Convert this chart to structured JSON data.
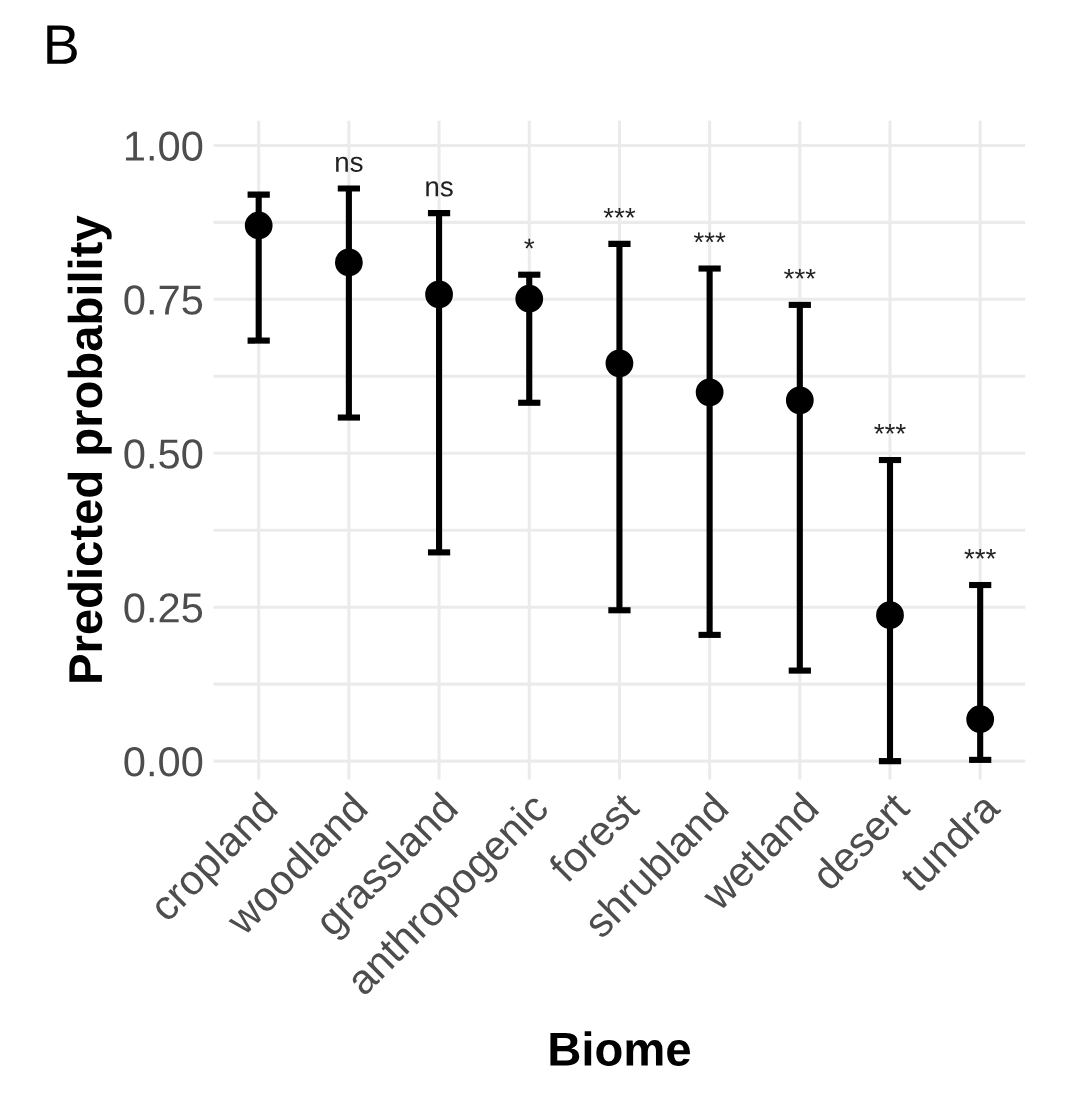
{
  "chart_data": {
    "type": "scatter",
    "title": "B",
    "xlabel": "Biome",
    "ylabel": "Predicted probability",
    "categories": [
      "cropland",
      "woodland",
      "grassland",
      "anthropogenic",
      "forest",
      "shrubland",
      "wetland",
      "desert",
      "tundra"
    ],
    "series": [
      {
        "color": "#000000",
        "values": [
          0.87,
          0.81,
          0.758,
          0.751,
          0.646,
          0.599,
          0.586,
          0.237,
          0.068
        ],
        "errors": [
          [
            0.683,
            0.92
          ],
          [
            0.558,
            0.93
          ],
          [
            0.339,
            0.89
          ],
          [
            0.582,
            0.79
          ],
          [
            0.245,
            0.84
          ],
          [
            0.205,
            0.8
          ],
          [
            0.147,
            0.741
          ],
          [
            0.0,
            0.489
          ],
          [
            0.002,
            0.286
          ]
        ]
      }
    ],
    "annotations": [
      {
        "text": "ns",
        "x": "woodland",
        "y": 0.93
      },
      {
        "text": "ns",
        "x": "grassland",
        "y": 0.89
      },
      {
        "text": "*",
        "x": "anthropogenic",
        "y": 0.79
      },
      {
        "text": "***",
        "x": "forest",
        "y": 0.84
      },
      {
        "text": "***",
        "x": "shrubland",
        "y": 0.8
      },
      {
        "text": "***",
        "x": "wetland",
        "y": 0.741
      },
      {
        "text": "***",
        "x": "desert",
        "y": 0.489
      },
      {
        "text": "***",
        "x": "tundra",
        "y": 0.286
      }
    ],
    "ylim": [
      -0.03,
      1.04
    ],
    "yticks": [
      {
        "value": 0,
        "label": "0.00"
      },
      {
        "value": 0.125,
        "label": null
      },
      {
        "value": 0.25,
        "label": "0.25"
      },
      {
        "value": 0.375,
        "label": null
      },
      {
        "value": 0.5,
        "label": "0.50"
      },
      {
        "value": 0.625,
        "label": null
      },
      {
        "value": 0.75,
        "label": "0.75"
      },
      {
        "value": 0.875,
        "label": null
      },
      {
        "value": 1,
        "label": "1.00"
      }
    ],
    "grid": true,
    "marker": "circle"
  }
}
